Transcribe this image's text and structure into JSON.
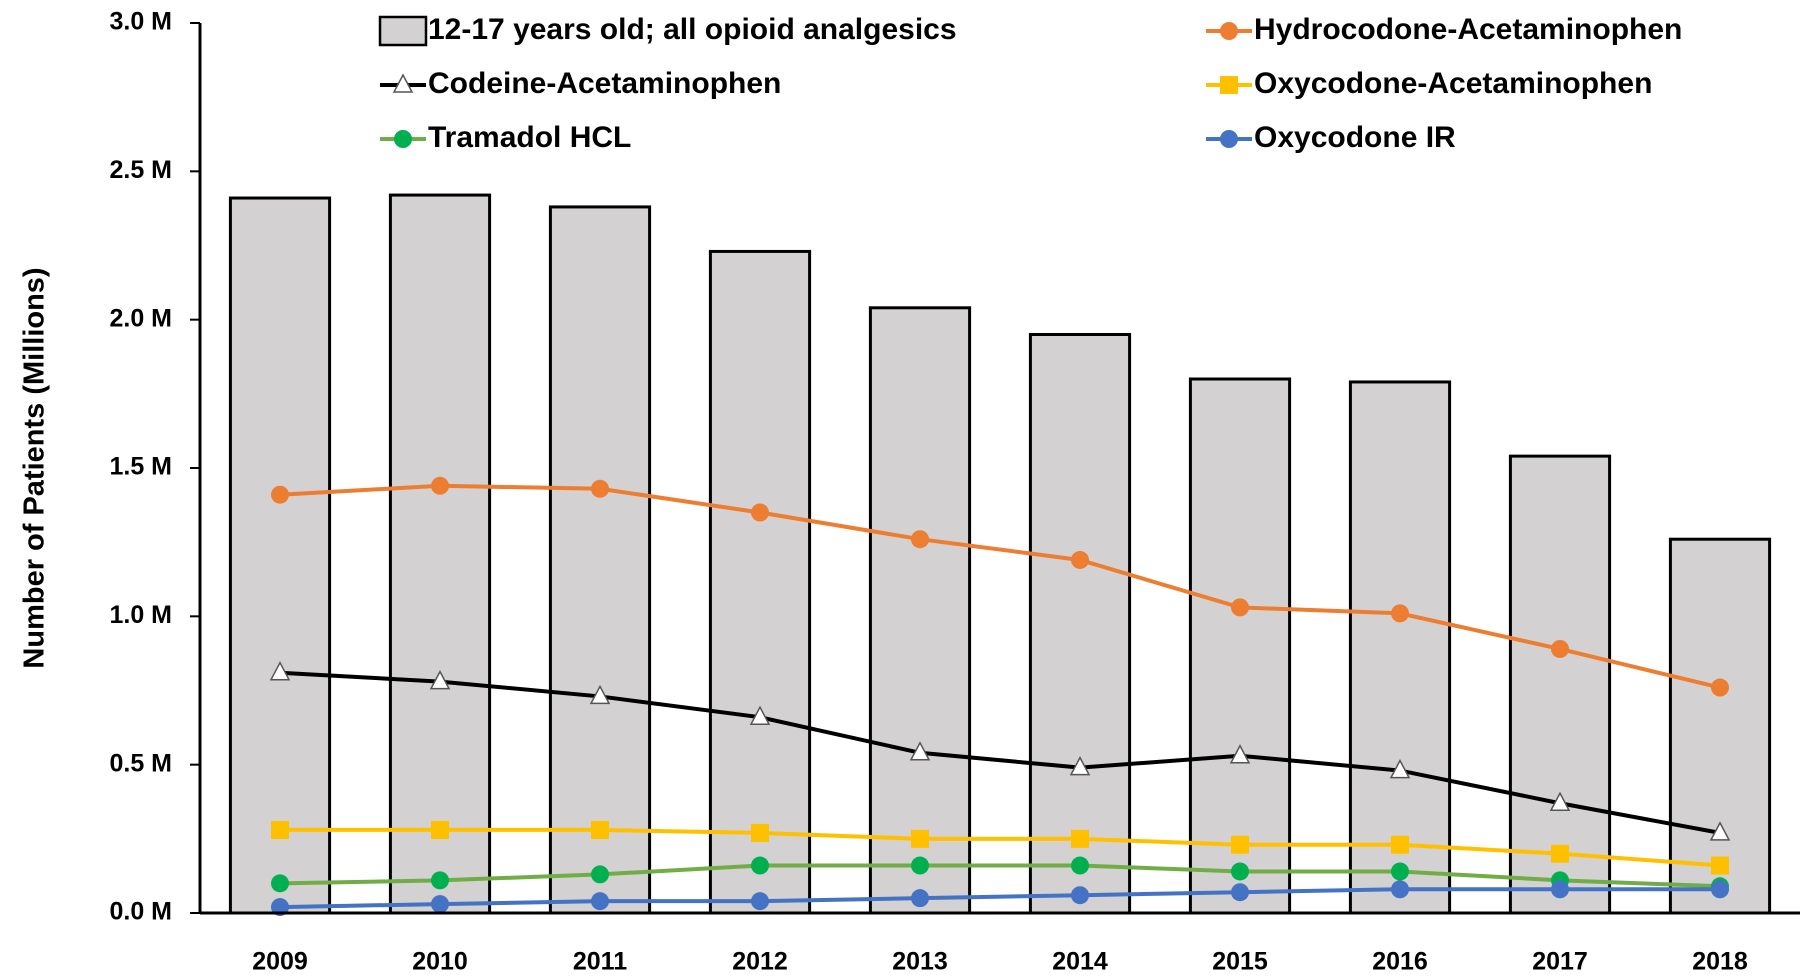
{
  "chart_data": {
    "type": "bar-line",
    "y_label": "Number of Patients (Millions)",
    "categories": [
      "2009",
      "2010",
      "2011",
      "2012",
      "2013",
      "2014",
      "2015",
      "2016",
      "2017",
      "2018"
    ],
    "series": [
      {
        "name": "12-17 years old; all opioid analgesics",
        "type": "bar",
        "color": "#d3d1d2",
        "values": [
          2.41,
          2.42,
          2.38,
          2.23,
          2.04,
          1.95,
          1.8,
          1.79,
          1.54,
          1.26
        ]
      },
      {
        "name": "Hydrocodone-Acetaminophen",
        "type": "line",
        "color": "#ed7d31",
        "marker": "circle",
        "marker_color": "#ed7d31",
        "values": [
          1.41,
          1.44,
          1.43,
          1.35,
          1.26,
          1.19,
          1.03,
          1.01,
          0.89,
          0.76
        ]
      },
      {
        "name": "Codeine-Acetaminophen",
        "type": "line",
        "color": "#000000",
        "marker": "triangle",
        "marker_color": "#ffffff",
        "values": [
          0.81,
          0.78,
          0.73,
          0.66,
          0.54,
          0.49,
          0.53,
          0.48,
          0.37,
          0.27
        ]
      },
      {
        "name": "Oxycodone-Acetaminophen",
        "type": "line",
        "color": "#ffc000",
        "marker": "square",
        "marker_color": "#ffc000",
        "values": [
          0.28,
          0.28,
          0.28,
          0.27,
          0.25,
          0.25,
          0.23,
          0.23,
          0.2,
          0.16
        ]
      },
      {
        "name": "Tramadol HCL",
        "type": "line",
        "color": "#70ad47",
        "marker": "circle",
        "marker_color": "#00b050",
        "values": [
          0.1,
          0.11,
          0.13,
          0.16,
          0.16,
          0.16,
          0.14,
          0.14,
          0.11,
          0.09
        ]
      },
      {
        "name": "Oxycodone IR",
        "type": "line",
        "color": "#4472c4",
        "marker": "circle",
        "marker_color": "#4472c4",
        "values": [
          0.02,
          0.03,
          0.04,
          0.04,
          0.05,
          0.06,
          0.07,
          0.08,
          0.08,
          0.08
        ]
      }
    ],
    "ylim": [
      0,
      3
    ],
    "yticks": [
      {
        "value": 0,
        "label": "0.0 M"
      },
      {
        "value": 0.5,
        "label": "0.5 M"
      },
      {
        "value": 1,
        "label": "1.0 M"
      },
      {
        "value": 1.5,
        "label": "1.5 M"
      },
      {
        "value": 2,
        "label": "2.0 M"
      },
      {
        "value": 2.5,
        "label": "2.5 M"
      },
      {
        "value": 3,
        "label": "3.0 M"
      }
    ],
    "grid": false
  }
}
